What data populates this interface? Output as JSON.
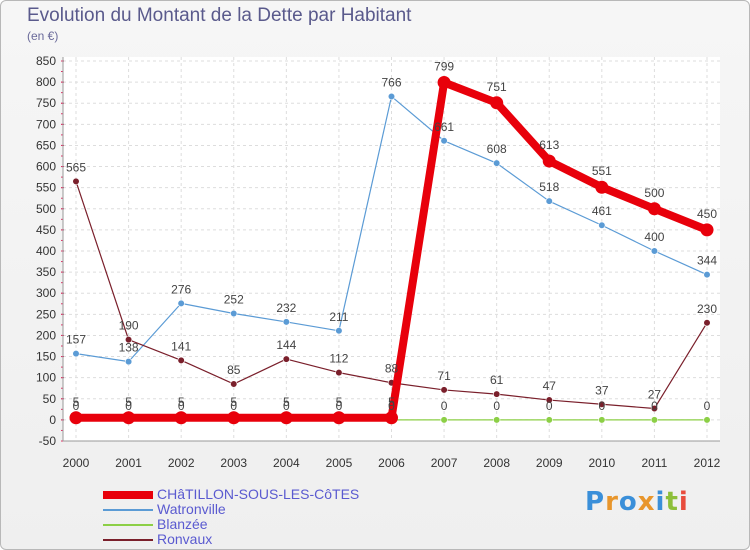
{
  "header": {
    "title": "Evolution du Montant de la Dette par Habitant",
    "unit": "(en €)"
  },
  "logo": {
    "text": "Proxiti",
    "letters": [
      "P",
      "r",
      "o",
      "x",
      "i",
      "t",
      "i"
    ],
    "colors": [
      "#3a8fd9",
      "#e8962c",
      "#3a8fd9",
      "#e8962c",
      "#3a8fd9",
      "#8dbf3a",
      "#e84c3d"
    ]
  },
  "chart_data": {
    "type": "line",
    "title": "Evolution du Montant de la Dette par Habitant",
    "ylabel": "(en €)",
    "xlabel": "",
    "ylim": [
      -50,
      850
    ],
    "yticks": [
      -50,
      0,
      50,
      100,
      150,
      200,
      250,
      300,
      350,
      400,
      450,
      500,
      550,
      600,
      650,
      700,
      750,
      800,
      850
    ],
    "categories": [
      "2000",
      "2001",
      "2002",
      "2003",
      "2004",
      "2005",
      "2006",
      "2007",
      "2008",
      "2009",
      "2010",
      "2011",
      "2012"
    ],
    "grid": true,
    "series": [
      {
        "name": "CHâTILLON-SOUS-LES-CôTES",
        "color": "#e8000b",
        "emphasis": "thick",
        "values": [
          5,
          5,
          5,
          5,
          5,
          5,
          5,
          799,
          751,
          613,
          551,
          500,
          450
        ]
      },
      {
        "name": "Watronville",
        "color": "#5b9bd5",
        "emphasis": "thin",
        "values": [
          157,
          138,
          276,
          252,
          232,
          211,
          766,
          661,
          608,
          518,
          461,
          400,
          344
        ]
      },
      {
        "name": "Blanzée",
        "color": "#8ccf46",
        "emphasis": "thin",
        "values": [
          0,
          0,
          0,
          0,
          0,
          0,
          0,
          0,
          0,
          0,
          0,
          0,
          0
        ]
      },
      {
        "name": "Ronvaux",
        "color": "#7a1f2b",
        "emphasis": "thin",
        "values": [
          565,
          190,
          141,
          85,
          144,
          112,
          88,
          71,
          61,
          47,
          37,
          27,
          230
        ]
      }
    ]
  }
}
